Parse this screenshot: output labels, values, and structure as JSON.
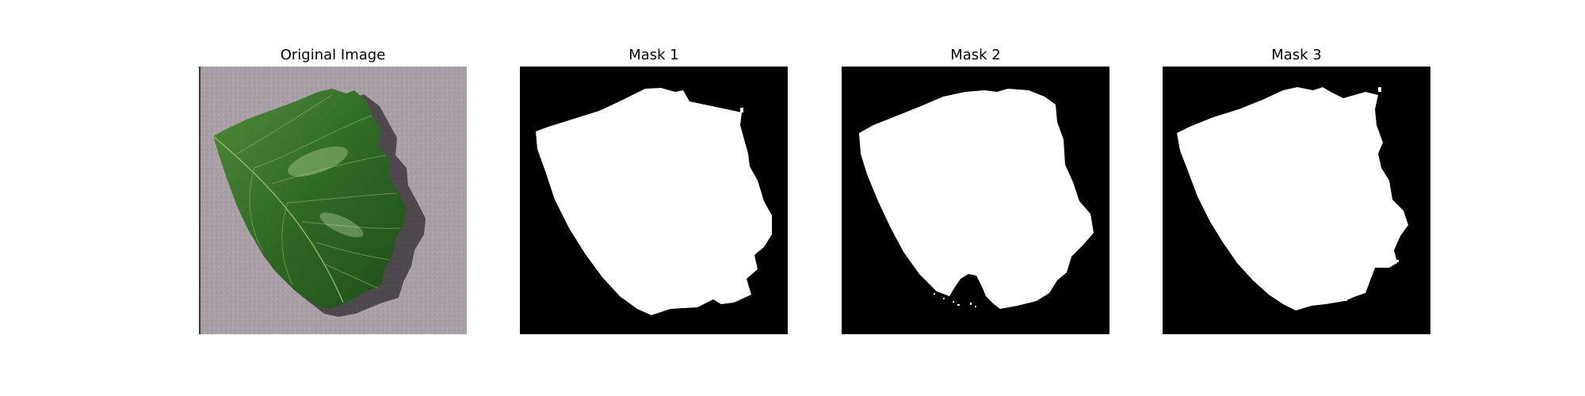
{
  "figure": {
    "panels": [
      {
        "title": "Original Image",
        "kind": "photo"
      },
      {
        "title": "Mask 1",
        "kind": "mask"
      },
      {
        "title": "Mask 2",
        "kind": "mask"
      },
      {
        "title": "Mask 3",
        "kind": "mask"
      }
    ]
  },
  "colors": {
    "background": "#ffffff",
    "mask_foreground": "#ffffff",
    "mask_background": "#000000",
    "leaf_green": "#2e6b23",
    "surface_gray": "#a79ca3"
  }
}
